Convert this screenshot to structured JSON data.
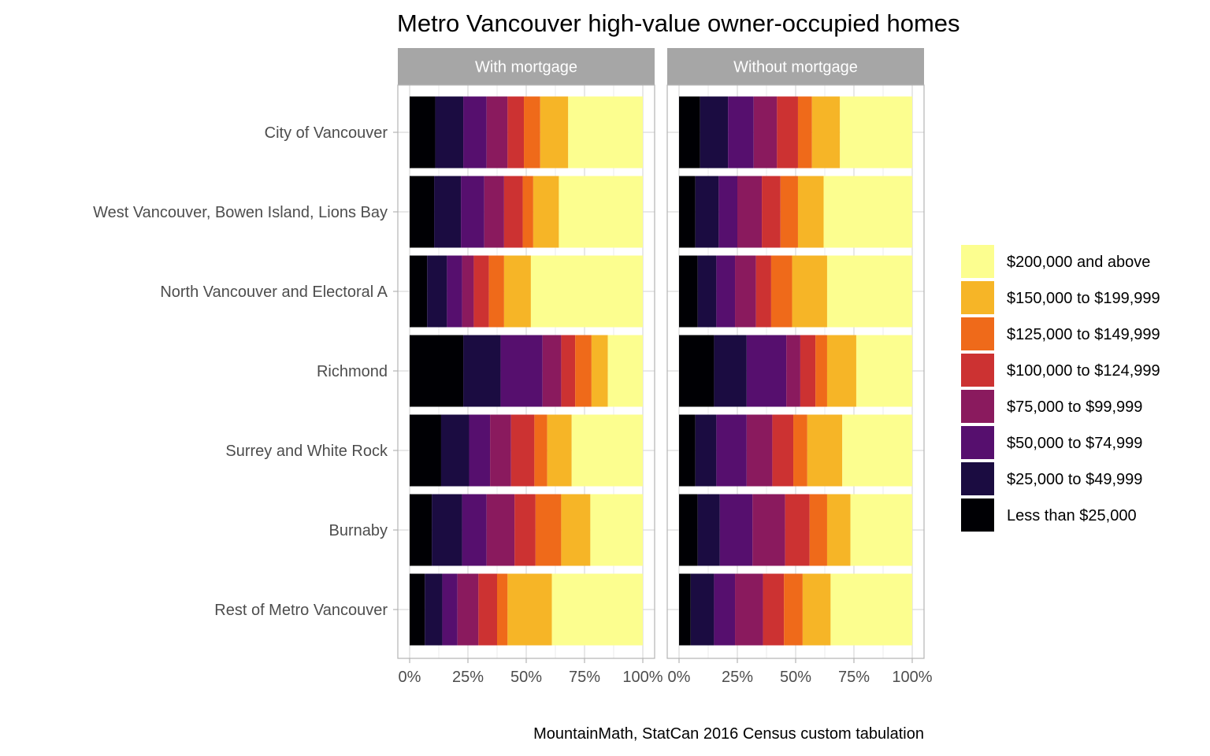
{
  "chart_data": {
    "type": "bar",
    "orientation": "horizontal",
    "stacked": "percent",
    "title": "Metro Vancouver high-value owner-occupied homes",
    "caption": "MountainMath, StatCan 2016 Census custom tabulation",
    "xlabel": "",
    "ylabel": "",
    "xlim": [
      0,
      100
    ],
    "x_ticks": [
      "0%",
      "25%",
      "50%",
      "75%",
      "100%"
    ],
    "grid": true,
    "legend_position": "right",
    "categories": [
      "City of Vancouver",
      "West Vancouver, Bowen Island, Lions Bay",
      "North Vancouver and Electoral A",
      "Richmond",
      "Surrey and White Rock",
      "Burnaby",
      "Rest of Metro Vancouver"
    ],
    "series": [
      {
        "name": "Less than $25,000",
        "color": "#000004"
      },
      {
        "name": "$25,000 to $49,999",
        "color": "#1b0c41"
      },
      {
        "name": "$50,000 to $74,999",
        "color": "#560f6e"
      },
      {
        "name": "$75,000 to $99,999",
        "color": "#8a1a5e"
      },
      {
        "name": "$100,000 to $124,999",
        "color": "#cc3232"
      },
      {
        "name": "$125,000 to $149,999",
        "color": "#ef6a1a"
      },
      {
        "name": "$150,000 to $199,999",
        "color": "#f6b527"
      },
      {
        "name": "$200,000 and above",
        "color": "#fcfe8f"
      }
    ],
    "legend_order": [
      "$200,000 and above",
      "$150,000 to $199,999",
      "$125,000 to $149,999",
      "$100,000 to $124,999",
      "$75,000 to $99,999",
      "$50,000 to $74,999",
      "$25,000 to $49,999",
      "Less than $25,000"
    ],
    "panels": [
      {
        "name": "With mortgage",
        "values": [
          [
            11,
            12,
            10,
            9,
            7,
            7,
            12,
            32
          ],
          [
            10.5,
            11.5,
            10,
            8.5,
            8,
            4.5,
            11,
            36
          ],
          [
            7.5,
            8.5,
            6.5,
            5,
            6.5,
            6.5,
            11.5,
            48
          ],
          [
            23,
            16,
            18,
            8,
            6,
            7,
            7,
            15
          ],
          [
            13.5,
            12,
            9,
            9,
            10,
            5.5,
            10.5,
            30.5
          ],
          [
            9.5,
            13,
            10.5,
            12,
            9,
            11,
            12.5,
            22.5
          ],
          [
            6.5,
            7.5,
            6.5,
            9,
            8,
            4.5,
            19,
            39
          ]
        ]
      },
      {
        "name": "Without mortgage",
        "values": [
          [
            9,
            12,
            11,
            10,
            9,
            6,
            12,
            31
          ],
          [
            7,
            10,
            8,
            10.5,
            8,
            7.5,
            11,
            38
          ],
          [
            8,
            8,
            8,
            9,
            6.5,
            9,
            15,
            36.5
          ],
          [
            15,
            14,
            17,
            6,
            6.5,
            5,
            12.5,
            24
          ],
          [
            7,
            9,
            13,
            11,
            9,
            6,
            15,
            30
          ],
          [
            8,
            9.5,
            14,
            14,
            10.5,
            7.5,
            10,
            26.5
          ],
          [
            5,
            10,
            9,
            12,
            9,
            8,
            12,
            35
          ]
        ]
      }
    ]
  }
}
